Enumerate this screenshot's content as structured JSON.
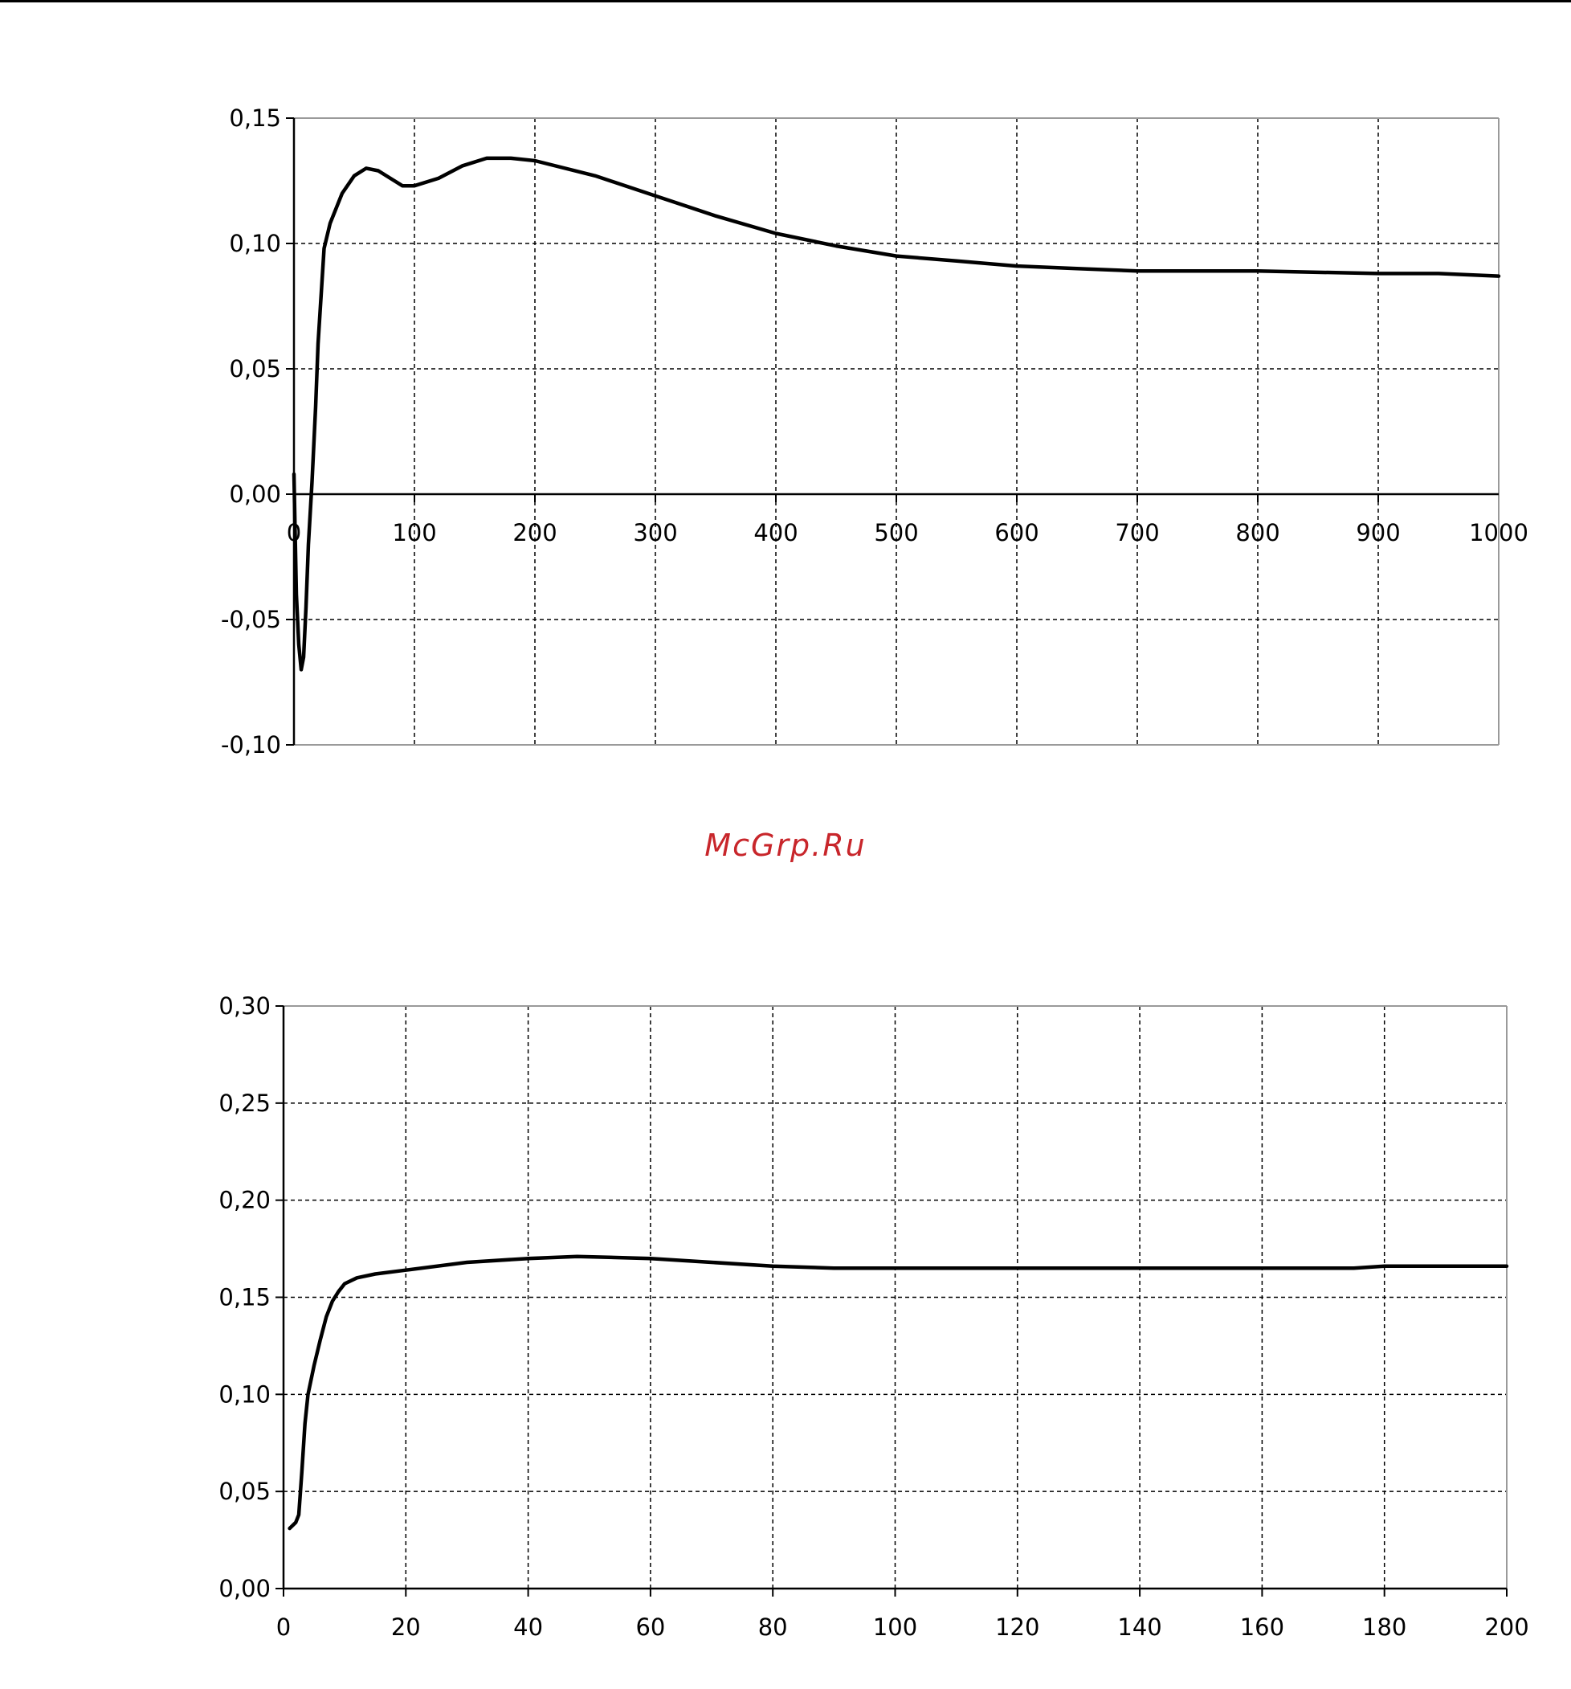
{
  "watermark": "McGrp.Ru",
  "chart_data": [
    {
      "type": "line",
      "grid": true,
      "xlim": [
        0,
        1000
      ],
      "ylim": [
        -0.1,
        0.15
      ],
      "x_ticks": [
        0,
        100,
        200,
        300,
        400,
        500,
        600,
        700,
        800,
        900,
        1000
      ],
      "x_tick_labels": [
        "0",
        "100",
        "200",
        "300",
        "400",
        "500",
        "600",
        "700",
        "800",
        "900",
        "1000"
      ],
      "y_ticks": [
        -0.1,
        -0.05,
        0.0,
        0.05,
        0.1,
        0.15
      ],
      "y_tick_labels": [
        "-0,10",
        "-0,05",
        "0,00",
        "0,05",
        "0,10",
        "0,15"
      ],
      "x_axis_at_y": 0,
      "series": [
        {
          "color": "#000000",
          "x": [
            0,
            2,
            4,
            6,
            8,
            10,
            12,
            15,
            18,
            20,
            25,
            30,
            40,
            50,
            60,
            70,
            80,
            90,
            100,
            120,
            140,
            160,
            180,
            200,
            250,
            300,
            350,
            400,
            450,
            500,
            550,
            600,
            650,
            700,
            800,
            900,
            950,
            1000
          ],
          "y": [
            0.008,
            -0.04,
            -0.06,
            -0.07,
            -0.065,
            -0.045,
            -0.02,
            0.005,
            0.035,
            0.06,
            0.098,
            0.108,
            0.12,
            0.127,
            0.13,
            0.129,
            0.126,
            0.123,
            0.123,
            0.126,
            0.131,
            0.134,
            0.134,
            0.133,
            0.127,
            0.119,
            0.111,
            0.104,
            0.099,
            0.095,
            0.093,
            0.091,
            0.09,
            0.089,
            0.089,
            0.088,
            0.088,
            0.087
          ]
        }
      ]
    },
    {
      "type": "line",
      "grid": true,
      "xlim": [
        0,
        200
      ],
      "ylim": [
        0,
        0.3
      ],
      "x_ticks": [
        0,
        20,
        40,
        60,
        80,
        100,
        120,
        140,
        160,
        180,
        200
      ],
      "x_tick_labels": [
        "0",
        "20",
        "40",
        "60",
        "80",
        "100",
        "120",
        "140",
        "160",
        "180",
        "200"
      ],
      "y_ticks": [
        0,
        0.05,
        0.1,
        0.15,
        0.2,
        0.25,
        0.3
      ],
      "y_tick_labels": [
        "0,00",
        "0,05",
        "0,10",
        "0,15",
        "0,20",
        "0,25",
        "0,30"
      ],
      "x_axis_at_y": 0,
      "series": [
        {
          "color": "#000000",
          "x": [
            1,
            2,
            2.5,
            3,
            3.5,
            4,
            5,
            6,
            7,
            8,
            9,
            10,
            12,
            15,
            20,
            30,
            40,
            48,
            60,
            70,
            80,
            90,
            100,
            120,
            140,
            160,
            175,
            180,
            200
          ],
          "y": [
            0.031,
            0.034,
            0.038,
            0.06,
            0.085,
            0.1,
            0.115,
            0.128,
            0.14,
            0.148,
            0.153,
            0.157,
            0.16,
            0.162,
            0.164,
            0.168,
            0.17,
            0.171,
            0.17,
            0.168,
            0.166,
            0.165,
            0.165,
            0.165,
            0.165,
            0.165,
            0.165,
            0.166,
            0.166
          ]
        }
      ]
    }
  ]
}
